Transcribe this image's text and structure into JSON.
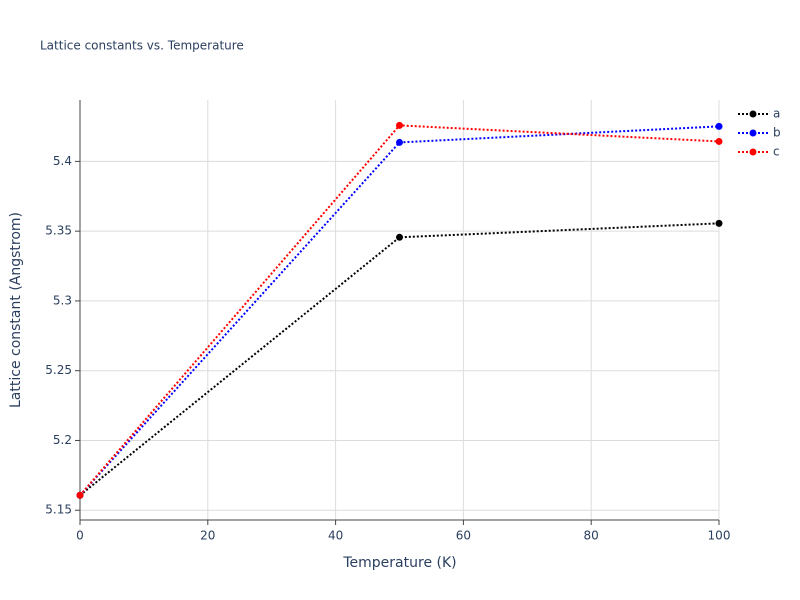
{
  "chart_data": {
    "type": "line",
    "title": "Lattice constants vs. Temperature",
    "x_label": "Temperature (K)",
    "y_label": "Lattice constant (Angstrom)",
    "x": [
      0,
      50,
      100
    ],
    "series": [
      {
        "name": "a",
        "color": "#000000",
        "values": [
          5.1607,
          5.3456,
          5.3556
        ]
      },
      {
        "name": "b",
        "color": "#0000ff",
        "values": [
          5.1607,
          5.4136,
          5.4251
        ]
      },
      {
        "name": "c",
        "color": "#ff0000",
        "values": [
          5.1607,
          5.4258,
          5.4143
        ]
      }
    ],
    "xlim": [
      0,
      100
    ],
    "xticks": [
      0,
      20,
      40,
      60,
      80,
      100
    ],
    "ylim": [
      5.143,
      5.444
    ],
    "yticks": [
      5.15,
      5.2,
      5.25,
      5.3,
      5.35,
      5.4
    ],
    "grid": true,
    "legend": "top-right"
  }
}
